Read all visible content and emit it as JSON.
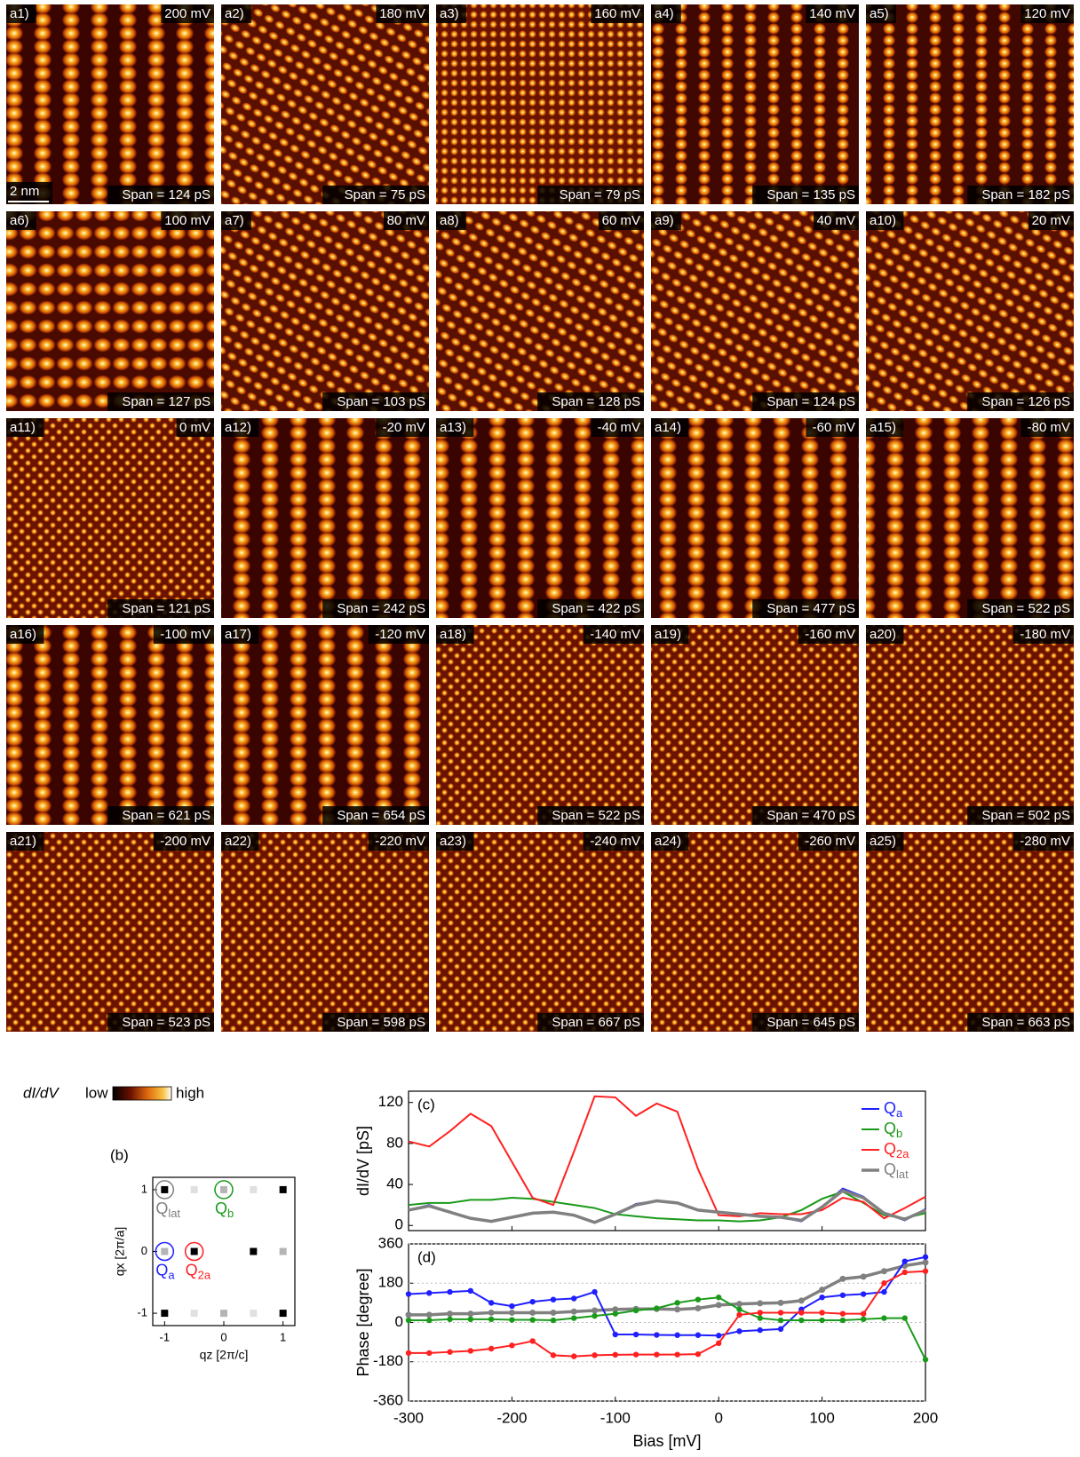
{
  "panels": [
    {
      "label": "a1)",
      "bias": "200 mV",
      "span": "Span = 124 pS",
      "scale_bar": "2 nm"
    },
    {
      "label": "a2)",
      "bias": "180 mV",
      "span": "Span =  75 pS"
    },
    {
      "label": "a3)",
      "bias": "160 mV",
      "span": "Span =  79 pS"
    },
    {
      "label": "a4)",
      "bias": "140 mV",
      "span": "Span = 135 pS"
    },
    {
      "label": "a5)",
      "bias": "120 mV",
      "span": "Span = 182 pS"
    },
    {
      "label": "a6)",
      "bias": "100 mV",
      "span": "Span = 127 pS"
    },
    {
      "label": "a7)",
      "bias": "80 mV",
      "span": "Span = 103 pS"
    },
    {
      "label": "a8)",
      "bias": "60 mV",
      "span": "Span = 128 pS"
    },
    {
      "label": "a9)",
      "bias": "40 mV",
      "span": "Span = 124 pS"
    },
    {
      "label": "a10)",
      "bias": "20 mV",
      "span": "Span = 126 pS"
    },
    {
      "label": "a11)",
      "bias": "0 mV",
      "span": "Span = 121 pS"
    },
    {
      "label": "a12)",
      "bias": "-20 mV",
      "span": "Span = 242 pS"
    },
    {
      "label": "a13)",
      "bias": "-40 mV",
      "span": "Span = 422 pS"
    },
    {
      "label": "a14)",
      "bias": "-60 mV",
      "span": "Span = 477 pS"
    },
    {
      "label": "a15)",
      "bias": "-80 mV",
      "span": "Span = 522 pS"
    },
    {
      "label": "a16)",
      "bias": "-100 mV",
      "span": "Span = 621 pS"
    },
    {
      "label": "a17)",
      "bias": "-120 mV",
      "span": "Span = 654 pS"
    },
    {
      "label": "a18)",
      "bias": "-140 mV",
      "span": "Span = 522 pS"
    },
    {
      "label": "a19)",
      "bias": "-160 mV",
      "span": "Span = 470 pS"
    },
    {
      "label": "a20)",
      "bias": "-180 mV",
      "span": "Span = 502 pS"
    },
    {
      "label": "a21)",
      "bias": "-200 mV",
      "span": "Span = 523 pS"
    },
    {
      "label": "a22)",
      "bias": "-220 mV",
      "span": "Span = 598 pS"
    },
    {
      "label": "a23)",
      "bias": "-240 mV",
      "span": "Span = 667 pS"
    },
    {
      "label": "a24)",
      "bias": "-260 mV",
      "span": "Span = 645 pS"
    },
    {
      "label": "a25)",
      "bias": "-280 mV",
      "span": "Span = 663 pS"
    }
  ],
  "colorbar": {
    "label": "dI/dV",
    "low": "low",
    "high": "high"
  },
  "chart_data": [
    {
      "type": "scatter",
      "tag": "(b)",
      "xlabel": "qz [2π/c]",
      "ylabel": "qx [2π/a]",
      "xlim": [
        -1.2,
        1.2
      ],
      "ylim": [
        -1.2,
        1.2
      ],
      "xticks": [
        -1,
        0,
        1
      ],
      "yticks": [
        -1,
        0,
        1
      ],
      "series": [
        {
          "color": "#000000",
          "x": [
            -1,
            1,
            -0.5,
            0.5,
            -1,
            1
          ],
          "y": [
            1,
            1,
            0,
            0,
            -1,
            -1
          ]
        },
        {
          "color": "#b4b4b4",
          "x": [
            0,
            -1,
            1,
            0
          ],
          "y": [
            1,
            0,
            0,
            -1
          ]
        },
        {
          "color": "#e0e0e0",
          "x": [
            -0.5,
            0.5,
            -0.5,
            0.5
          ],
          "y": [
            1,
            1,
            -1,
            -1
          ]
        }
      ],
      "annotations": [
        {
          "text": "Qlat",
          "x": -1,
          "y": 1,
          "color": "#808080"
        },
        {
          "text": "Qb",
          "x": 0,
          "y": 1,
          "color": "#1a9a1a"
        },
        {
          "text": "Qa",
          "x": -1,
          "y": 0,
          "color": "#1f1fff"
        },
        {
          "text": "Q2a",
          "x": -0.5,
          "y": 0,
          "color": "#ff2020"
        }
      ]
    },
    {
      "type": "line",
      "tag": "(c)",
      "ylabel": "dI/dV [pS]",
      "xlim": [
        -300,
        200
      ],
      "ylim": [
        -5,
        131
      ],
      "xticks": [
        -300,
        -200,
        -100,
        0,
        100,
        200
      ],
      "xticklabels": false,
      "yticks": [
        0,
        40,
        80,
        120
      ],
      "legend": "upper right",
      "markers": false,
      "grid": false,
      "x": [
        -300,
        -280,
        -260,
        -240,
        -220,
        -200,
        -180,
        -160,
        -140,
        -120,
        -100,
        -80,
        -60,
        -40,
        -20,
        0,
        20,
        40,
        60,
        80,
        100,
        120,
        140,
        160,
        180,
        200
      ],
      "series": [
        {
          "name": "Qa",
          "color": "#1f1fff",
          "values": [
            15,
            20,
            13,
            7,
            4,
            8,
            12,
            13,
            10,
            3,
            11,
            21,
            24,
            22,
            15,
            13,
            11,
            9,
            8,
            4,
            18,
            36,
            28,
            12,
            5,
            16
          ]
        },
        {
          "name": "Qb",
          "color": "#1a9a1a",
          "values": [
            20,
            22,
            22,
            25,
            25,
            27,
            26,
            23,
            20,
            17,
            11,
            9,
            7,
            6,
            5,
            5,
            4,
            5,
            8,
            15,
            26,
            33,
            22,
            10,
            7,
            12
          ]
        },
        {
          "name": "Q2a",
          "color": "#ff2020",
          "values": [
            82,
            77,
            92,
            109,
            97,
            62,
            27,
            20,
            72,
            126,
            125,
            107,
            119,
            111,
            55,
            10,
            9,
            12,
            11,
            11,
            15,
            27,
            23,
            7,
            17,
            28
          ]
        },
        {
          "name": "Qlat",
          "color": "#808080",
          "values": [
            15,
            19,
            13,
            7,
            4,
            8,
            12,
            13,
            10,
            3,
            11,
            20,
            24,
            22,
            15,
            13,
            11,
            9,
            8,
            5,
            18,
            34,
            27,
            12,
            6,
            15
          ]
        }
      ]
    },
    {
      "type": "line",
      "tag": "(d)",
      "xlabel": "Bias [mV]",
      "ylabel": "Phase [degree]",
      "xlim": [
        -300,
        200
      ],
      "ylim": [
        -360,
        360
      ],
      "xticks": [
        -300,
        -200,
        -100,
        0,
        100,
        200
      ],
      "yticks": [
        -360,
        -180,
        0,
        180,
        360
      ],
      "markers": true,
      "grid": true,
      "x": [
        -300,
        -280,
        -260,
        -240,
        -220,
        -200,
        -180,
        -160,
        -140,
        -120,
        -100,
        -80,
        -60,
        -40,
        -20,
        0,
        20,
        40,
        60,
        80,
        100,
        120,
        140,
        160,
        180,
        200
      ],
      "series": [
        {
          "color": "#808080",
          "values": [
            35,
            35,
            40,
            40,
            45,
            45,
            45,
            45,
            50,
            55,
            60,
            62,
            62,
            60,
            65,
            80,
            85,
            88,
            90,
            100,
            150,
            200,
            210,
            235,
            260,
            275
          ]
        },
        {
          "color": "#1f1fff",
          "values": [
            130,
            135,
            140,
            145,
            90,
            75,
            95,
            105,
            110,
            140,
            -55,
            -55,
            -57,
            -58,
            -58,
            -60,
            -40,
            -35,
            -30,
            60,
            115,
            125,
            130,
            140,
            280,
            300
          ]
        },
        {
          "color": "#1a9a1a",
          "values": [
            10,
            10,
            15,
            15,
            15,
            12,
            12,
            10,
            20,
            30,
            40,
            55,
            65,
            90,
            105,
            115,
            60,
            20,
            10,
            10,
            10,
            10,
            15,
            20,
            20,
            -170
          ]
        },
        {
          "color": "#ff2020",
          "values": [
            -140,
            -140,
            -135,
            -130,
            -120,
            -105,
            -85,
            -150,
            -155,
            -150,
            -148,
            -147,
            -147,
            -147,
            -145,
            -95,
            35,
            45,
            45,
            45,
            45,
            40,
            40,
            180,
            230,
            235
          ]
        }
      ]
    }
  ]
}
